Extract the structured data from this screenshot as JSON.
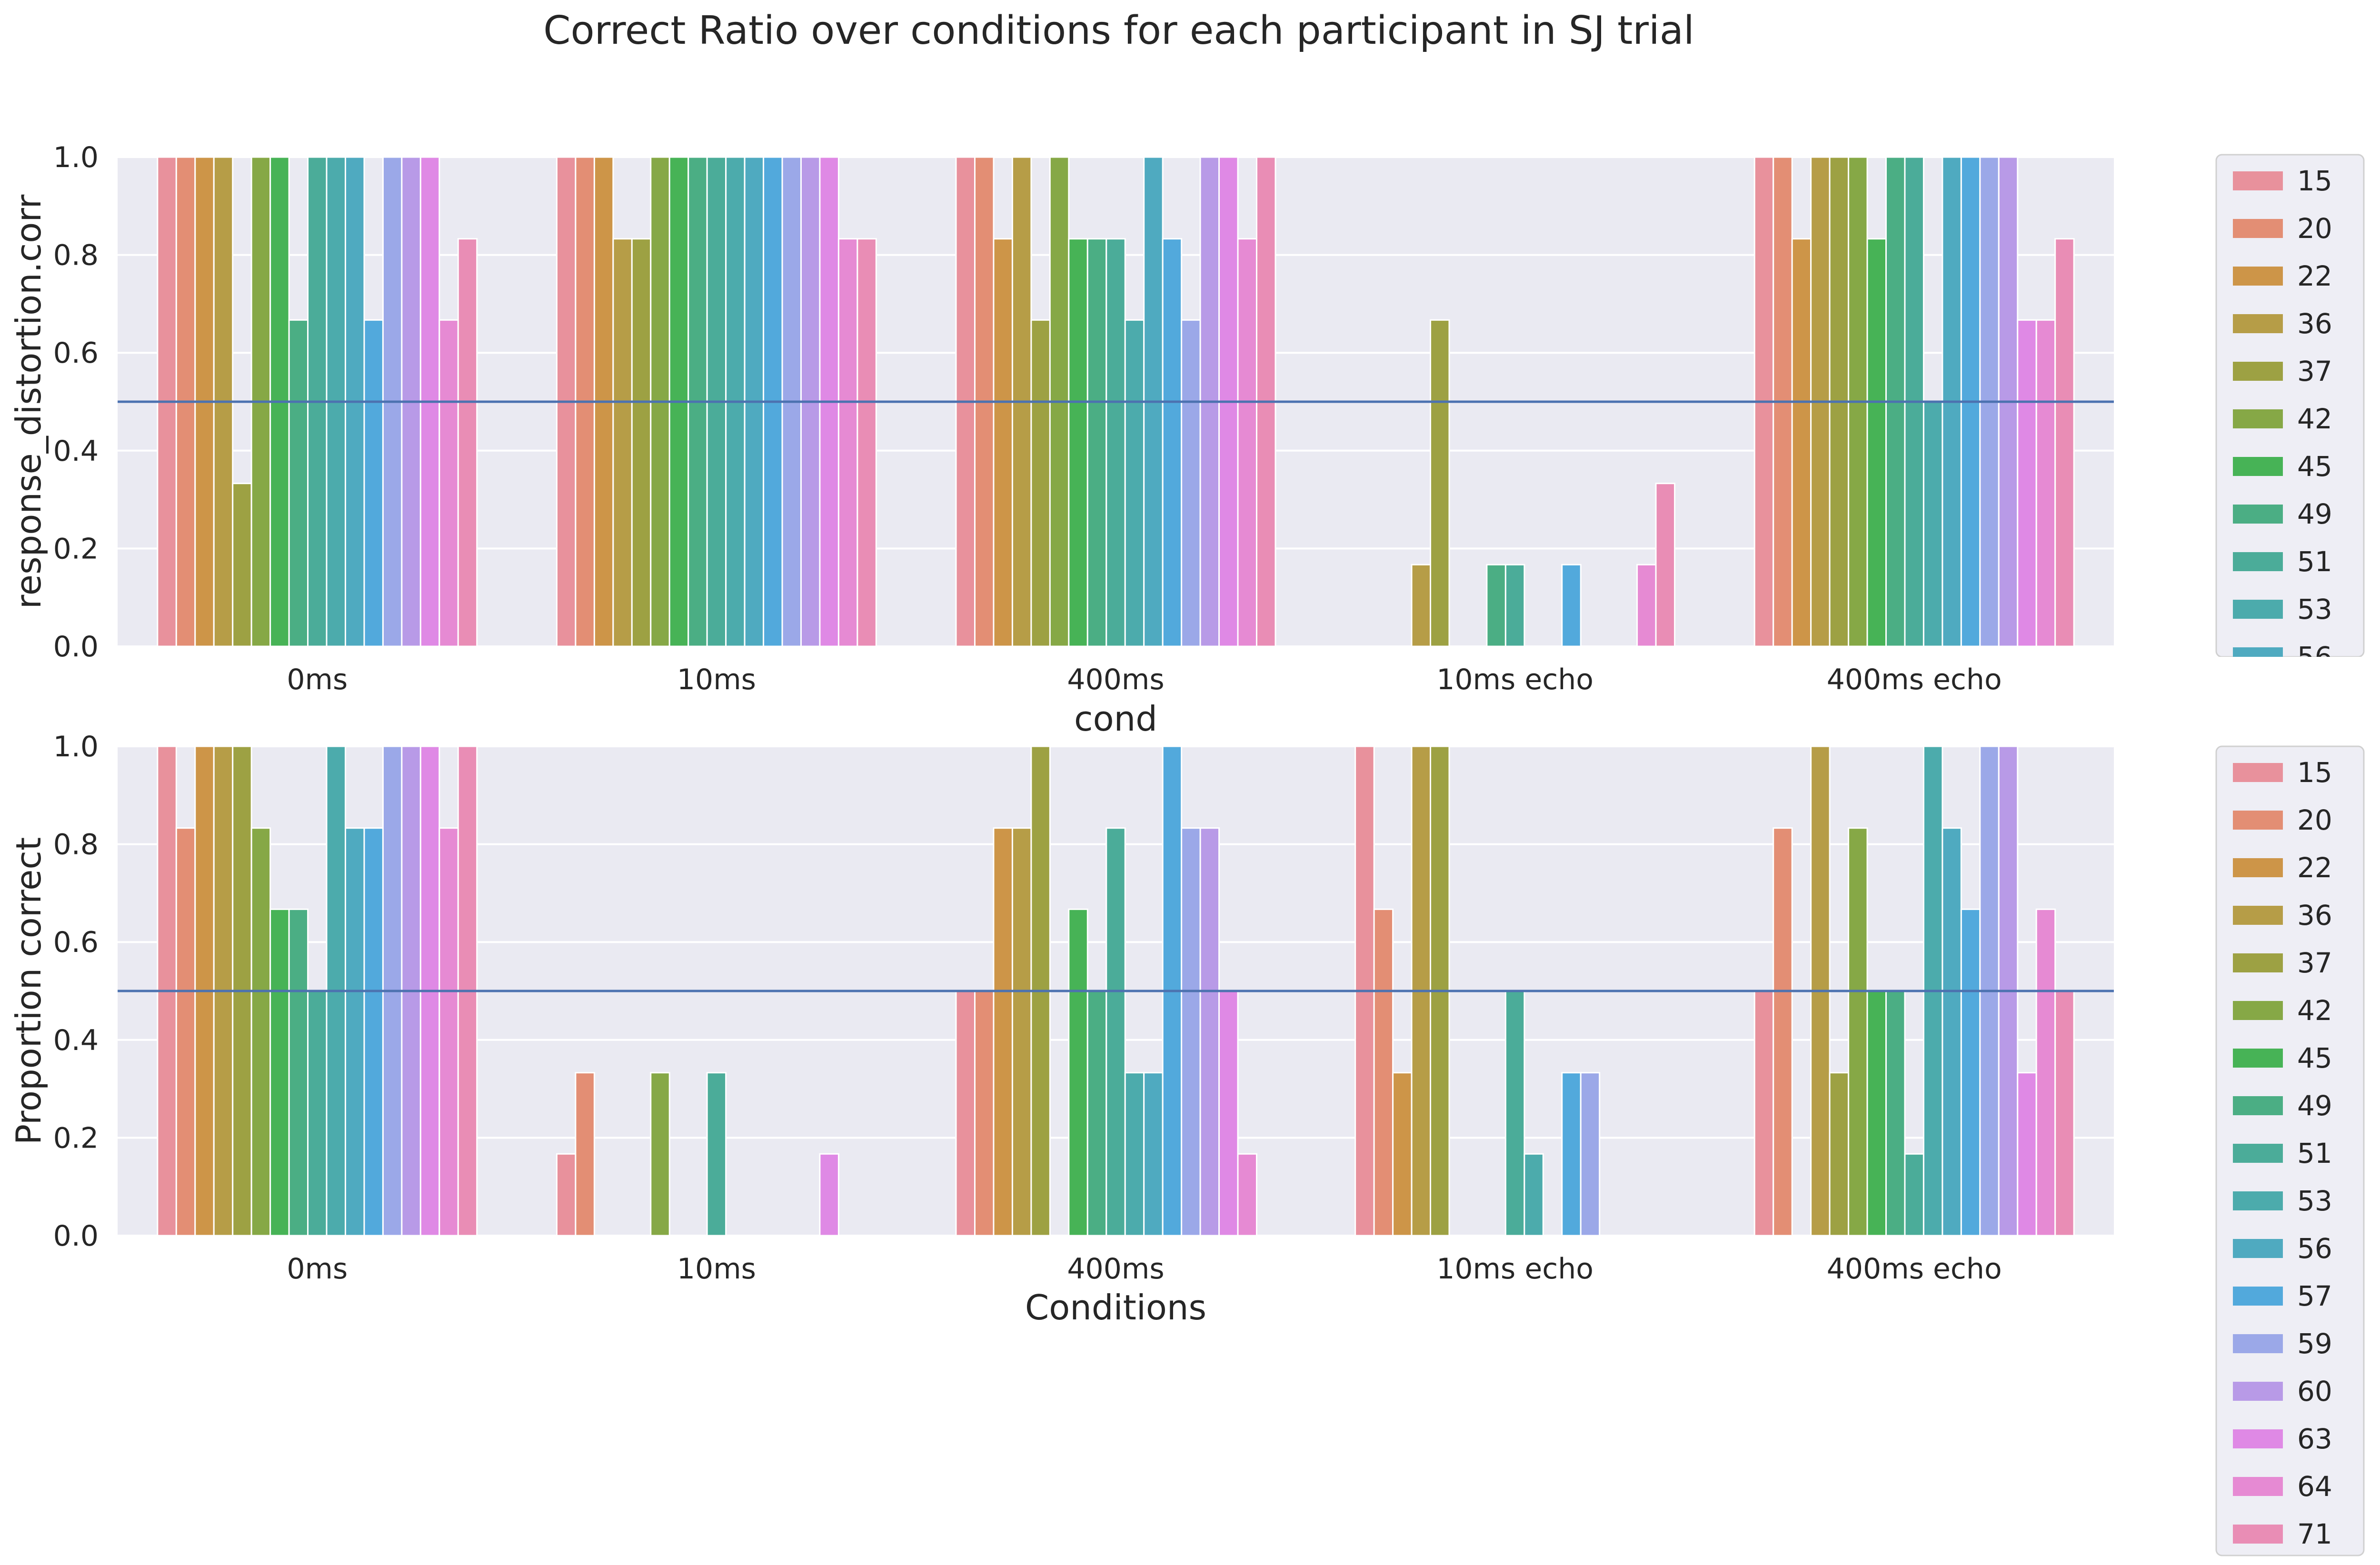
{
  "figure_title": "Correct Ratio over conditions for each participant in SJ trial",
  "chart_data": [
    {
      "type": "bar",
      "xlabel": "cond",
      "ylabel": "response_distortion.corr",
      "ylim": [
        0,
        1.0
      ],
      "yticks": [
        "0.0",
        "0.2",
        "0.4",
        "0.6",
        "0.8",
        "1.0"
      ],
      "reference_line": 0.5,
      "grid": true,
      "legend_position": "right",
      "categories": [
        "0ms",
        "10ms",
        "400ms",
        "10ms echo",
        "400ms echo"
      ],
      "series": [
        {
          "name": "15",
          "color": "#e8919c",
          "values": [
            1.0,
            1.0,
            1.0,
            0.0,
            1.0
          ]
        },
        {
          "name": "20",
          "color": "#e38e74",
          "values": [
            1.0,
            1.0,
            1.0,
            0.0,
            1.0
          ]
        },
        {
          "name": "22",
          "color": "#cd9548",
          "values": [
            1.0,
            1.0,
            0.833,
            0.0,
            0.833
          ]
        },
        {
          "name": "36",
          "color": "#b69d47",
          "values": [
            1.0,
            0.833,
            1.0,
            0.167,
            1.0
          ]
        },
        {
          "name": "37",
          "color": "#9da143",
          "values": [
            0.333,
            0.833,
            0.667,
            0.667,
            1.0
          ]
        },
        {
          "name": "42",
          "color": "#86a846",
          "values": [
            1.0,
            1.0,
            1.0,
            0.0,
            1.0
          ]
        },
        {
          "name": "45",
          "color": "#47b356",
          "values": [
            1.0,
            1.0,
            0.833,
            0.0,
            0.833
          ]
        },
        {
          "name": "49",
          "color": "#4bae84",
          "values": [
            0.667,
            1.0,
            0.833,
            0.167,
            1.0
          ]
        },
        {
          "name": "51",
          "color": "#4bac99",
          "values": [
            1.0,
            1.0,
            0.833,
            0.167,
            1.0
          ]
        },
        {
          "name": "53",
          "color": "#4cabac",
          "values": [
            1.0,
            1.0,
            0.667,
            0.0,
            0.5
          ]
        },
        {
          "name": "56",
          "color": "#4faac0",
          "values": [
            1.0,
            1.0,
            1.0,
            0.0,
            1.0
          ]
        },
        {
          "name": "57",
          "color": "#52a9dc",
          "values": [
            0.667,
            1.0,
            0.833,
            0.167,
            1.0
          ]
        },
        {
          "name": "59",
          "color": "#9ba8e8",
          "values": [
            1.0,
            1.0,
            0.667,
            0.0,
            1.0
          ]
        },
        {
          "name": "60",
          "color": "#b89ae7",
          "values": [
            1.0,
            1.0,
            1.0,
            0.0,
            1.0
          ]
        },
        {
          "name": "63",
          "color": "#df89e5",
          "values": [
            1.0,
            1.0,
            1.0,
            0.0,
            0.667
          ]
        },
        {
          "name": "64",
          "color": "#e68ad3",
          "values": [
            0.667,
            0.833,
            0.833,
            0.167,
            0.667
          ]
        },
        {
          "name": "71",
          "color": "#e98db5",
          "values": [
            0.833,
            0.833,
            1.0,
            0.333,
            0.833
          ]
        }
      ]
    },
    {
      "type": "bar",
      "xlabel": "Conditions",
      "ylabel": "Proportion correct",
      "ylim": [
        0,
        1.0
      ],
      "yticks": [
        "0.0",
        "0.2",
        "0.4",
        "0.6",
        "0.8",
        "1.0"
      ],
      "reference_line": 0.5,
      "grid": true,
      "legend_position": "right",
      "categories": [
        "0ms",
        "10ms",
        "400ms",
        "10ms echo",
        "400ms echo"
      ],
      "series": [
        {
          "name": "15",
          "color": "#e8919c",
          "values": [
            1.0,
            0.167,
            0.5,
            1.0,
            0.5
          ]
        },
        {
          "name": "20",
          "color": "#e38e74",
          "values": [
            0.833,
            0.333,
            0.5,
            0.667,
            0.833
          ]
        },
        {
          "name": "22",
          "color": "#cd9548",
          "values": [
            1.0,
            0.0,
            0.833,
            0.333,
            0.0
          ]
        },
        {
          "name": "36",
          "color": "#b69d47",
          "values": [
            1.0,
            0.0,
            0.833,
            1.0,
            1.0
          ]
        },
        {
          "name": "37",
          "color": "#9da143",
          "values": [
            1.0,
            0.0,
            1.0,
            1.0,
            0.333
          ]
        },
        {
          "name": "42",
          "color": "#86a846",
          "values": [
            0.833,
            0.333,
            0.0,
            0.0,
            0.833
          ]
        },
        {
          "name": "45",
          "color": "#47b356",
          "values": [
            0.667,
            0.0,
            0.667,
            0.0,
            0.5
          ]
        },
        {
          "name": "49",
          "color": "#4bae84",
          "values": [
            0.667,
            0.0,
            0.5,
            0.0,
            0.5
          ]
        },
        {
          "name": "51",
          "color": "#4bac99",
          "values": [
            0.5,
            0.333,
            0.833,
            0.5,
            0.167
          ]
        },
        {
          "name": "53",
          "color": "#4cabac",
          "values": [
            1.0,
            0.0,
            0.333,
            0.167,
            1.0
          ]
        },
        {
          "name": "56",
          "color": "#4faac0",
          "values": [
            0.833,
            0.0,
            0.333,
            0.0,
            0.833
          ]
        },
        {
          "name": "57",
          "color": "#52a9dc",
          "values": [
            0.833,
            0.0,
            1.0,
            0.333,
            0.667
          ]
        },
        {
          "name": "59",
          "color": "#9ba8e8",
          "values": [
            1.0,
            0.0,
            0.833,
            0.333,
            1.0
          ]
        },
        {
          "name": "60",
          "color": "#b89ae7",
          "values": [
            1.0,
            0.0,
            0.833,
            0.0,
            1.0
          ]
        },
        {
          "name": "63",
          "color": "#df89e5",
          "values": [
            1.0,
            0.167,
            0.5,
            0.0,
            0.333
          ]
        },
        {
          "name": "64",
          "color": "#e68ad3",
          "values": [
            0.833,
            0.0,
            0.167,
            0.0,
            0.667
          ]
        },
        {
          "name": "71",
          "color": "#e98db5",
          "values": [
            1.0,
            0.0,
            0.0,
            0.0,
            0.5
          ]
        }
      ]
    }
  ]
}
